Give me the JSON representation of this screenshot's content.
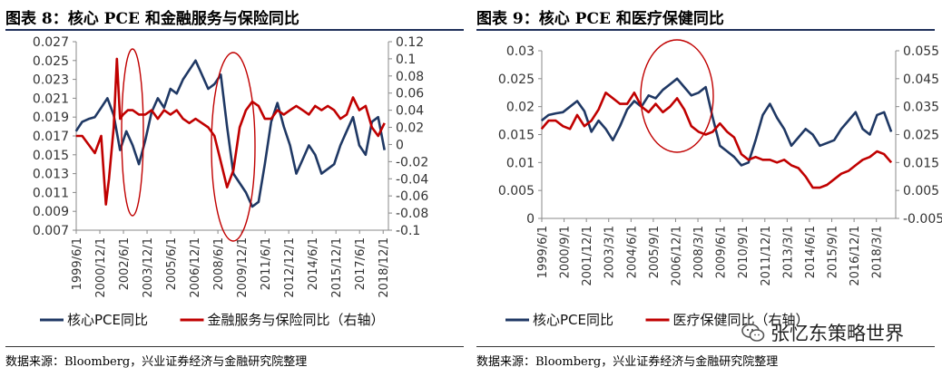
{
  "charts": [
    {
      "title": "图表 8：核心 PCE 和金融服务与保险同比",
      "source": "数据来源：Bloomberg，兴业证券经济与金融研究院整理"
    },
    {
      "title": "图表 9：核心 PCE 和医疗保健同比",
      "source": "数据来源：Bloomberg，兴业证券经济与金融研究院整理"
    }
  ],
  "watermark": {
    "text": "张忆东策略世界",
    "icon": "wechat-icon"
  },
  "colors": {
    "navy": "#1f3864",
    "red": "#c00000",
    "rule": "#1f2f5a"
  },
  "chart_data": [
    {
      "type": "line",
      "legend_position": "bottom",
      "grid": false,
      "x_ticks": [
        "1999/6/1",
        "2000/12/1",
        "2002/6/1",
        "2003/12/1",
        "2005/6/1",
        "2006/12/1",
        "2008/6/1",
        "2009/12/1",
        "2011/6/1",
        "2012/12/1",
        "2014/6/1",
        "2015/12/1",
        "2017/6/1",
        "2018/12/1"
      ],
      "y_left": {
        "ylim": [
          0.007,
          0.027
        ],
        "ticks": [
          "0.007",
          "0.009",
          "0.011",
          "0.013",
          "0.015",
          "0.017",
          "0.019",
          "0.021",
          "0.023",
          "0.025",
          "0.027"
        ]
      },
      "y_right": {
        "ylim": [
          -0.1,
          0.12
        ],
        "ticks": [
          "-0.1",
          "-0.08",
          "-0.06",
          "-0.04",
          "-0.02",
          "0",
          "0.02",
          "0.04",
          "0.06",
          "0.08",
          "0.1",
          "0.12"
        ]
      },
      "series": [
        {
          "name": "核心PCE同比",
          "axis": "left",
          "color": "#1f3864",
          "x": [
            1999.4,
            1999.8,
            2000.2,
            2000.6,
            2001.0,
            2001.4,
            2001.8,
            2002.2,
            2002.6,
            2003.0,
            2003.4,
            2003.8,
            2004.2,
            2004.6,
            2005.0,
            2005.4,
            2005.8,
            2006.2,
            2006.6,
            2007.0,
            2007.4,
            2007.8,
            2008.2,
            2008.6,
            2009.0,
            2009.4,
            2009.8,
            2010.2,
            2010.6,
            2011.0,
            2011.4,
            2011.8,
            2012.2,
            2012.6,
            2013.0,
            2013.4,
            2013.8,
            2014.2,
            2014.6,
            2015.0,
            2015.4,
            2015.8,
            2016.2,
            2016.6,
            2017.0,
            2017.4,
            2017.8,
            2018.2,
            2018.6,
            2019.0
          ],
          "values": [
            0.0175,
            0.0185,
            0.0188,
            0.019,
            0.02,
            0.021,
            0.0192,
            0.0155,
            0.0175,
            0.016,
            0.014,
            0.0165,
            0.0195,
            0.021,
            0.02,
            0.022,
            0.0215,
            0.023,
            0.024,
            0.025,
            0.0235,
            0.022,
            0.0225,
            0.0235,
            0.018,
            0.013,
            0.012,
            0.011,
            0.0095,
            0.01,
            0.014,
            0.0185,
            0.0205,
            0.018,
            0.016,
            0.013,
            0.0145,
            0.016,
            0.015,
            0.013,
            0.0135,
            0.014,
            0.016,
            0.0175,
            0.019,
            0.016,
            0.015,
            0.0185,
            0.019,
            0.0155
          ]
        },
        {
          "name": "金融服务与保险同比（右轴）",
          "axis": "right",
          "color": "#c00000",
          "x": [
            1999.4,
            1999.8,
            2000.2,
            2000.6,
            2001.0,
            2001.3,
            2001.5,
            2001.8,
            2002.0,
            2002.2,
            2002.4,
            2002.7,
            2003.0,
            2003.4,
            2003.8,
            2004.2,
            2004.6,
            2005.0,
            2005.4,
            2005.8,
            2006.2,
            2006.6,
            2007.0,
            2007.4,
            2007.8,
            2008.2,
            2008.6,
            2009.0,
            2009.4,
            2009.8,
            2010.2,
            2010.6,
            2011.0,
            2011.4,
            2011.8,
            2012.2,
            2012.6,
            2013.0,
            2013.4,
            2013.8,
            2014.2,
            2014.6,
            2015.0,
            2015.4,
            2015.8,
            2016.2,
            2016.6,
            2017.0,
            2017.4,
            2017.8,
            2018.2,
            2018.6,
            2019.0
          ],
          "values": [
            0.01,
            0.01,
            0.0,
            -0.01,
            0.01,
            -0.07,
            -0.04,
            0.02,
            0.1,
            0.03,
            0.035,
            0.04,
            0.04,
            0.035,
            0.035,
            0.04,
            0.03,
            0.04,
            0.035,
            0.04,
            0.03,
            0.025,
            0.03,
            0.025,
            0.02,
            0.01,
            -0.02,
            -0.05,
            -0.03,
            0.02,
            0.04,
            0.05,
            0.045,
            0.03,
            0.03,
            0.04,
            0.035,
            0.04,
            0.045,
            0.04,
            0.035,
            0.045,
            0.04,
            0.045,
            0.04,
            0.03,
            0.035,
            0.055,
            0.04,
            0.045,
            0.02,
            0.01,
            0.025
          ]
        }
      ]
    },
    {
      "type": "line",
      "legend_position": "bottom",
      "grid": false,
      "x_ticks": [
        "1999/6/1",
        "2000/9/1",
        "2001/12/1",
        "2003/3/1",
        "2004/6/1",
        "2005/9/1",
        "2006/12/1",
        "2008/3/1",
        "2009/6/1",
        "2010/9/1",
        "2011/12/1",
        "2013/3/1",
        "2014/6/1",
        "2015/9/1",
        "2016/12/1",
        "2018/3/1"
      ],
      "y_left": {
        "ylim": [
          0,
          0.03
        ],
        "ticks": [
          "0",
          "0.005",
          "0.01",
          "0.015",
          "0.02",
          "0.025",
          "0.03"
        ]
      },
      "y_right": {
        "ylim": [
          -0.005,
          0.055
        ],
        "ticks": [
          "-0.005",
          "0.005",
          "0.015",
          "0.025",
          "0.035",
          "0.045",
          "0.055"
        ]
      },
      "series": [
        {
          "name": "核心PCE同比",
          "axis": "left",
          "color": "#1f3864",
          "x": [
            1999.4,
            1999.8,
            2000.2,
            2000.6,
            2001.0,
            2001.4,
            2001.8,
            2002.2,
            2002.6,
            2003.0,
            2003.4,
            2003.8,
            2004.2,
            2004.6,
            2005.0,
            2005.4,
            2005.8,
            2006.2,
            2006.6,
            2007.0,
            2007.4,
            2007.8,
            2008.2,
            2008.6,
            2009.0,
            2009.4,
            2009.8,
            2010.2,
            2010.6,
            2011.0,
            2011.4,
            2011.8,
            2012.2,
            2012.6,
            2013.0,
            2013.4,
            2013.8,
            2014.2,
            2014.6,
            2015.0,
            2015.4,
            2015.8,
            2016.2,
            2016.6,
            2017.0,
            2017.4,
            2017.8,
            2018.2,
            2018.6,
            2019.0
          ],
          "values": [
            0.0175,
            0.0185,
            0.0188,
            0.019,
            0.02,
            0.021,
            0.0192,
            0.0155,
            0.0175,
            0.016,
            0.014,
            0.0165,
            0.0195,
            0.021,
            0.02,
            0.022,
            0.0215,
            0.023,
            0.024,
            0.025,
            0.0235,
            0.022,
            0.0225,
            0.0235,
            0.018,
            0.013,
            0.012,
            0.011,
            0.0095,
            0.01,
            0.014,
            0.0185,
            0.0205,
            0.018,
            0.016,
            0.013,
            0.0145,
            0.016,
            0.015,
            0.013,
            0.0135,
            0.014,
            0.016,
            0.0175,
            0.019,
            0.016,
            0.015,
            0.0185,
            0.019,
            0.0155
          ]
        },
        {
          "name": "医疗保健同比（右轴）",
          "axis": "right",
          "color": "#c00000",
          "x": [
            1999.4,
            1999.8,
            2000.2,
            2000.6,
            2001.0,
            2001.4,
            2001.8,
            2002.2,
            2002.6,
            2003.0,
            2003.4,
            2003.8,
            2004.2,
            2004.6,
            2005.0,
            2005.4,
            2005.8,
            2006.2,
            2006.6,
            2007.0,
            2007.4,
            2007.8,
            2008.2,
            2008.6,
            2009.0,
            2009.4,
            2009.8,
            2010.2,
            2010.6,
            2011.0,
            2011.4,
            2011.8,
            2012.2,
            2012.6,
            2013.0,
            2013.4,
            2013.8,
            2014.2,
            2014.6,
            2015.0,
            2015.4,
            2015.8,
            2016.2,
            2016.6,
            2017.0,
            2017.4,
            2017.8,
            2018.2,
            2018.6,
            2019.0
          ],
          "values": [
            0.027,
            0.03,
            0.03,
            0.028,
            0.027,
            0.032,
            0.028,
            0.03,
            0.034,
            0.04,
            0.038,
            0.036,
            0.036,
            0.04,
            0.035,
            0.033,
            0.036,
            0.033,
            0.035,
            0.038,
            0.034,
            0.028,
            0.026,
            0.025,
            0.026,
            0.029,
            0.026,
            0.024,
            0.018,
            0.016,
            0.017,
            0.016,
            0.016,
            0.015,
            0.016,
            0.014,
            0.013,
            0.01,
            0.006,
            0.006,
            0.007,
            0.009,
            0.011,
            0.012,
            0.014,
            0.016,
            0.017,
            0.019,
            0.018,
            0.015
          ]
        }
      ]
    }
  ]
}
